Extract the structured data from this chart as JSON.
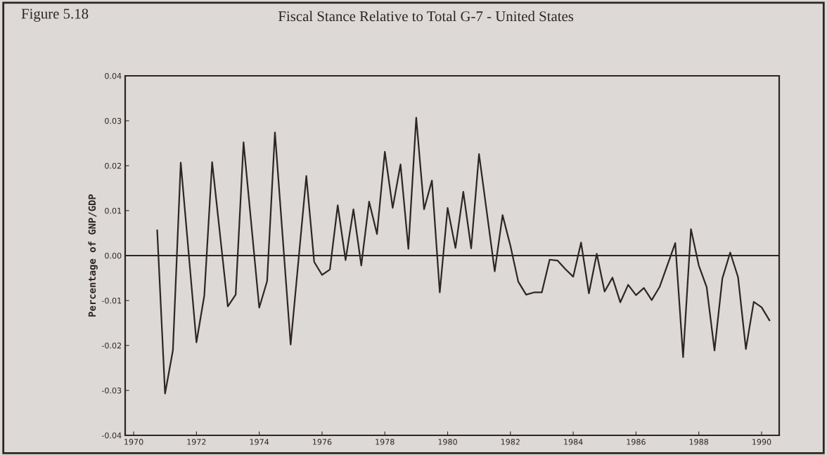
{
  "chart_data": {
    "type": "line",
    "title": "Fiscal Stance Relative to Total G-7 - United States",
    "ylabel": "Percentage of GNP/GDP",
    "annotations": [
      "Figure 5.18"
    ],
    "x": [
      1970.75,
      1971.0,
      1971.25,
      1971.5,
      1972.0,
      1972.25,
      1972.5,
      1973.0,
      1973.25,
      1973.5,
      1974.0,
      1974.25,
      1974.5,
      1975.0,
      1975.5,
      1975.75,
      1976.0,
      1976.25,
      1976.5,
      1976.75,
      1977.0,
      1977.25,
      1977.5,
      1977.75,
      1978.0,
      1978.25,
      1978.5,
      1978.75,
      1979.0,
      1979.25,
      1979.5,
      1979.75,
      1980.0,
      1980.25,
      1980.5,
      1980.75,
      1981.0,
      1981.5,
      1981.75,
      1982.0,
      1982.25,
      1982.5,
      1982.75,
      1983.0,
      1983.25,
      1983.5,
      1983.75,
      1984.0,
      1984.25,
      1984.5,
      1984.75,
      1985.0,
      1985.25,
      1985.5,
      1985.75,
      1986.0,
      1986.25,
      1986.5,
      1986.75,
      1987.25,
      1987.5,
      1987.75,
      1988.0,
      1988.25,
      1988.5,
      1988.75,
      1989.0,
      1989.25,
      1989.5,
      1989.75,
      1990.0,
      1990.25
    ],
    "series": [
      {
        "color": "#2e2624",
        "values": [
          0.0056,
          -0.0307,
          -0.0211,
          0.0207,
          -0.0193,
          -0.0089,
          0.0208,
          -0.0113,
          -0.0087,
          0.0252,
          -0.0116,
          -0.0057,
          0.0274,
          -0.0198,
          0.0177,
          -0.0014,
          -0.0043,
          -0.0031,
          0.0112,
          -0.001,
          0.0103,
          -0.0022,
          0.012,
          0.0048,
          0.0231,
          0.0106,
          0.0203,
          0.0015,
          0.0307,
          0.0103,
          0.0167,
          -0.0082,
          0.0106,
          0.0017,
          0.0142,
          0.0016,
          0.0226,
          -0.0035,
          0.009,
          0.0022,
          -0.0058,
          -0.0087,
          -0.0082,
          -0.0082,
          -0.0009,
          -0.0011,
          -0.003,
          -0.0047,
          0.0029,
          -0.0084,
          0.0004,
          -0.008,
          -0.0049,
          -0.0104,
          -0.0065,
          -0.0088,
          -0.0072,
          -0.0099,
          -0.007,
          0.0028,
          -0.0226,
          0.0059,
          -0.0022,
          -0.007,
          -0.0211,
          -0.0051,
          0.0007,
          -0.0048,
          -0.0208,
          -0.0103,
          -0.0115,
          -0.0144
        ]
      }
    ],
    "xlim": [
      1969.73,
      1990.56
    ],
    "xticks": [
      1970,
      1972,
      1974,
      1976,
      1978,
      1980,
      1982,
      1984,
      1986,
      1988,
      1990
    ],
    "ylim": [
      -0.04,
      0.04
    ],
    "yticks": [
      {
        "value": -0.04,
        "label": "-0.04"
      },
      {
        "value": -0.03,
        "label": "-0.03"
      },
      {
        "value": -0.02,
        "label": "-0.02"
      },
      {
        "value": -0.01,
        "label": "-0.01"
      },
      {
        "value": 0,
        "label": "0.00"
      },
      {
        "value": 0.01,
        "label": "0.01"
      },
      {
        "value": 0.02,
        "label": "0.02"
      },
      {
        "value": 0.03,
        "label": "0.03"
      },
      {
        "value": 0.04,
        "label": "0.04"
      }
    ],
    "ref_lines": [
      {
        "axis": "y",
        "value": 0,
        "color": "#2e2624"
      }
    ],
    "grid": false,
    "marker": "none",
    "line_style": "solid"
  }
}
